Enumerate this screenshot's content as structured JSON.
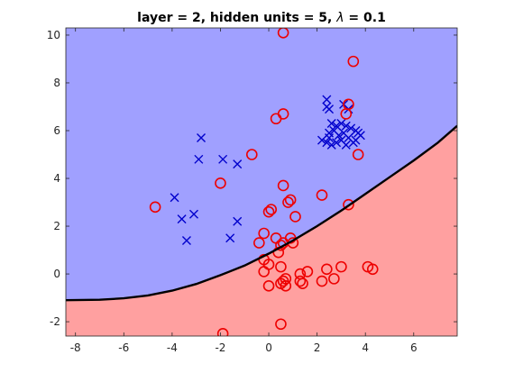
{
  "chart_data": {
    "type": "scatter",
    "title": "layer = 2, hidden units = 5, λ = 0.1",
    "title_parts": {
      "prefix": "layer = 2, hidden units = 5, ",
      "lambda_symbol": "λ",
      "suffix": " = 0.1"
    },
    "xlabel": "",
    "ylabel": "",
    "xlim": [
      -8.4,
      7.8
    ],
    "ylim": [
      -2.6,
      10.3
    ],
    "x_ticks": [
      -8,
      -6,
      -4,
      -2,
      0,
      2,
      4,
      6
    ],
    "y_ticks": [
      -2,
      0,
      2,
      4,
      6,
      8,
      10
    ],
    "x_tick_labels": [
      "-8",
      "-6",
      "-4",
      "-2",
      "0",
      "2",
      "4",
      "6"
    ],
    "y_tick_labels": [
      "-2",
      "0",
      "2",
      "4",
      "6",
      "8",
      "10"
    ],
    "grid": false,
    "legend": "none",
    "colors": {
      "region_blue": "#a0a0ff",
      "region_red": "#ffa0a0",
      "cross": "#0000cc",
      "circle": "#ee0000",
      "boundary": "#000000"
    },
    "decision_boundary": {
      "x": [
        -8.4,
        -7.0,
        -6.0,
        -5.0,
        -4.0,
        -3.0,
        -2.0,
        -1.0,
        0.0,
        1.0,
        2.0,
        3.0,
        4.0,
        5.0,
        6.0,
        7.0,
        7.8
      ],
      "y": [
        -1.1,
        -1.08,
        -1.02,
        -0.9,
        -0.7,
        -0.42,
        -0.05,
        0.35,
        0.85,
        1.4,
        2.0,
        2.65,
        3.35,
        4.05,
        4.75,
        5.5,
        6.2
      ]
    },
    "series": [
      {
        "marker": "x",
        "points": [
          [
            -2.8,
            5.7
          ],
          [
            -2.9,
            4.8
          ],
          [
            -1.9,
            4.8
          ],
          [
            -1.3,
            4.6
          ],
          [
            -3.9,
            3.2
          ],
          [
            -3.6,
            2.3
          ],
          [
            -3.1,
            2.5
          ],
          [
            -3.4,
            1.4
          ],
          [
            -1.3,
            2.2
          ],
          [
            -1.6,
            1.5
          ],
          [
            2.4,
            7.3
          ],
          [
            2.4,
            7.0
          ],
          [
            2.5,
            6.9
          ],
          [
            3.1,
            7.1
          ],
          [
            3.3,
            6.9
          ],
          [
            2.6,
            6.3
          ],
          [
            2.8,
            6.2
          ],
          [
            3.0,
            6.3
          ],
          [
            3.2,
            6.2
          ],
          [
            3.4,
            6.1
          ],
          [
            3.6,
            6.0
          ],
          [
            2.5,
            5.9
          ],
          [
            2.7,
            6.0
          ],
          [
            2.9,
            5.8
          ],
          [
            3.1,
            5.9
          ],
          [
            3.3,
            5.7
          ],
          [
            3.6,
            5.6
          ],
          [
            3.8,
            5.8
          ],
          [
            2.2,
            5.6
          ],
          [
            2.4,
            5.5
          ],
          [
            2.6,
            5.4
          ],
          [
            2.8,
            5.5
          ],
          [
            3.0,
            5.6
          ],
          [
            3.2,
            5.4
          ],
          [
            3.5,
            5.5
          ],
          [
            2.5,
            5.7
          ],
          [
            3.7,
            5.9
          ]
        ]
      },
      {
        "marker": "o",
        "points": [
          [
            0.6,
            10.1
          ],
          [
            3.5,
            8.9
          ],
          [
            3.3,
            7.1
          ],
          [
            3.2,
            6.7
          ],
          [
            0.3,
            6.5
          ],
          [
            0.6,
            6.7
          ],
          [
            -0.7,
            5.0
          ],
          [
            3.7,
            5.0
          ],
          [
            -2.0,
            3.8
          ],
          [
            0.6,
            3.7
          ],
          [
            -4.7,
            2.8
          ],
          [
            0.8,
            3.0
          ],
          [
            0.9,
            3.1
          ],
          [
            2.2,
            3.3
          ],
          [
            3.3,
            2.9
          ],
          [
            0.0,
            2.6
          ],
          [
            0.1,
            2.7
          ],
          [
            1.1,
            2.4
          ],
          [
            -0.2,
            1.7
          ],
          [
            0.3,
            1.5
          ],
          [
            0.6,
            1.3
          ],
          [
            0.9,
            1.5
          ],
          [
            1.0,
            1.3
          ],
          [
            -0.4,
            1.3
          ],
          [
            0.5,
            1.2
          ],
          [
            0.4,
            0.9
          ],
          [
            -0.2,
            0.6
          ],
          [
            0.0,
            0.4
          ],
          [
            0.5,
            0.3
          ],
          [
            -0.2,
            0.1
          ],
          [
            1.3,
            0.0
          ],
          [
            1.6,
            0.1
          ],
          [
            3.0,
            0.3
          ],
          [
            2.4,
            0.2
          ],
          [
            4.1,
            0.3
          ],
          [
            4.3,
            0.2
          ],
          [
            0.7,
            -0.2
          ],
          [
            1.3,
            -0.3
          ],
          [
            1.4,
            -0.4
          ],
          [
            2.2,
            -0.3
          ],
          [
            2.7,
            -0.2
          ],
          [
            0.0,
            -0.5
          ],
          [
            0.5,
            -0.4
          ],
          [
            0.6,
            -0.3
          ],
          [
            0.7,
            -0.5
          ],
          [
            0.5,
            -2.1
          ],
          [
            -1.9,
            -2.5
          ]
        ]
      }
    ]
  }
}
